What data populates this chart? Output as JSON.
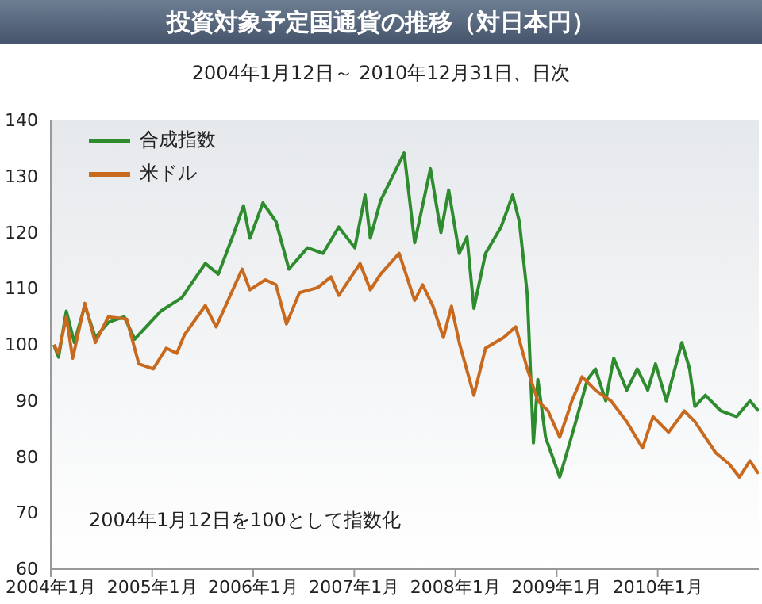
{
  "chart_data": {
    "type": "line",
    "title": "投資対象予定国通貨の推移（対日本円）",
    "subtitle": "2004年1月12日～ 2010年12月31日、日次",
    "annotations": [
      "2004年1月12日を100として指数化"
    ],
    "xlim": [
      "2004-01-01",
      "2011-01-01"
    ],
    "xticks": [
      {
        "value": "2004-01-01",
        "label": "2004年1月"
      },
      {
        "value": "2005-01-01",
        "label": "2005年1月"
      },
      {
        "value": "2006-01-01",
        "label": "2006年1月"
      },
      {
        "value": "2007-01-01",
        "label": "2007年1月"
      },
      {
        "value": "2008-01-01",
        "label": "2008年1月"
      },
      {
        "value": "2009-01-01",
        "label": "2009年1月"
      },
      {
        "value": "2010-01-01",
        "label": "2010年1月"
      }
    ],
    "ylim": [
      60,
      140
    ],
    "yticks": [
      60,
      70,
      80,
      90,
      100,
      110,
      120,
      130,
      140
    ],
    "grid": false,
    "legend": "top left",
    "marker": "none",
    "line_style": "solid",
    "series": [
      {
        "name": "合成指数",
        "color": "#2e8b2e",
        "x": [
          "2004-01-12",
          "2004-01-29",
          "2004-02-26",
          "2004-03-26",
          "2004-05-03",
          "2004-06-10",
          "2004-07-27",
          "2004-09-22",
          "2004-10-30",
          "2005-02-01",
          "2005-04-18",
          "2005-07-12",
          "2005-08-28",
          "2005-10-24",
          "2005-11-27",
          "2005-12-20",
          "2006-02-05",
          "2006-03-24",
          "2006-05-10",
          "2006-07-16",
          "2006-09-10",
          "2006-11-06",
          "2007-01-03",
          "2007-02-09",
          "2007-02-28",
          "2007-04-06",
          "2007-06-30",
          "2007-08-07",
          "2007-10-03",
          "2007-11-10",
          "2007-12-08",
          "2008-01-15",
          "2008-02-12",
          "2008-03-08",
          "2008-04-19",
          "2008-06-14",
          "2008-07-26",
          "2008-08-19",
          "2008-09-17",
          "2008-10-09",
          "2008-10-25",
          "2008-11-22",
          "2009-01-12",
          "2009-03-06",
          "2009-04-22",
          "2009-05-21",
          "2009-06-27",
          "2009-07-26",
          "2009-09-11",
          "2009-10-19",
          "2009-11-26",
          "2009-12-24",
          "2010-02-01",
          "2010-03-29",
          "2010-04-26",
          "2010-05-15",
          "2010-06-22",
          "2010-08-17",
          "2010-10-13",
          "2010-11-30",
          "2010-12-31"
        ],
        "values": [
          100,
          97.8,
          106,
          100.4,
          107,
          101.3,
          104,
          105,
          101,
          106,
          108.4,
          114.5,
          112.6,
          120,
          124.8,
          119,
          125.3,
          122,
          113.5,
          117.3,
          116.3,
          121,
          117.3,
          126.7,
          119,
          125.7,
          134.2,
          118.2,
          131.4,
          120,
          127.6,
          116.3,
          119.2,
          106.5,
          116.3,
          121,
          126.7,
          122,
          108.9,
          82.5,
          93.8,
          83.5,
          76.4,
          85.4,
          93.8,
          95.7,
          90,
          97.6,
          91.9,
          95.7,
          91.9,
          96.6,
          90,
          100.4,
          95.7,
          89,
          91,
          88.2,
          87.2,
          90,
          88.2
        ]
      },
      {
        "name": "米ドル",
        "color": "#c8691e",
        "x": [
          "2004-01-12",
          "2004-01-29",
          "2004-02-26",
          "2004-03-20",
          "2004-05-03",
          "2004-06-10",
          "2004-07-27",
          "2004-10-01",
          "2004-11-14",
          "2005-01-05",
          "2005-02-21",
          "2005-03-31",
          "2005-04-28",
          "2005-07-12",
          "2005-08-20",
          "2005-11-22",
          "2005-12-20",
          "2006-02-14",
          "2006-03-24",
          "2006-05-01",
          "2006-06-17",
          "2006-08-22",
          "2006-10-09",
          "2006-11-06",
          "2007-01-22",
          "2007-02-28",
          "2007-04-06",
          "2007-06-12",
          "2007-08-07",
          "2007-09-05",
          "2007-10-12",
          "2007-11-19",
          "2007-12-18",
          "2008-01-15",
          "2008-03-08",
          "2008-04-19",
          "2008-06-24",
          "2008-08-06",
          "2008-09-17",
          "2008-10-25",
          "2008-12-01",
          "2009-01-12",
          "2009-02-25",
          "2009-04-03",
          "2009-05-21",
          "2009-07-16",
          "2009-09-11",
          "2009-11-07",
          "2009-12-15",
          "2010-02-09",
          "2010-04-07",
          "2010-05-15",
          "2010-07-30",
          "2010-09-15",
          "2010-10-23",
          "2010-11-30",
          "2010-12-31"
        ],
        "values": [
          100,
          98.5,
          105,
          97.6,
          107.4,
          100.4,
          105,
          104.6,
          96.6,
          95.7,
          99.4,
          98.5,
          101.8,
          107,
          103.2,
          113.5,
          109.8,
          111.6,
          110.7,
          103.7,
          109.3,
          110.2,
          112.1,
          108.8,
          114.5,
          109.8,
          112.6,
          116.3,
          107.9,
          110.7,
          106.9,
          101.3,
          106.9,
          100.4,
          91,
          99.4,
          101.3,
          103.2,
          95.7,
          90,
          88.2,
          83.5,
          90,
          94.3,
          91.9,
          90,
          86.3,
          81.6,
          87.2,
          84.4,
          88.2,
          86.3,
          80.7,
          78.8,
          76.4,
          79.3,
          77
        ]
      }
    ]
  }
}
